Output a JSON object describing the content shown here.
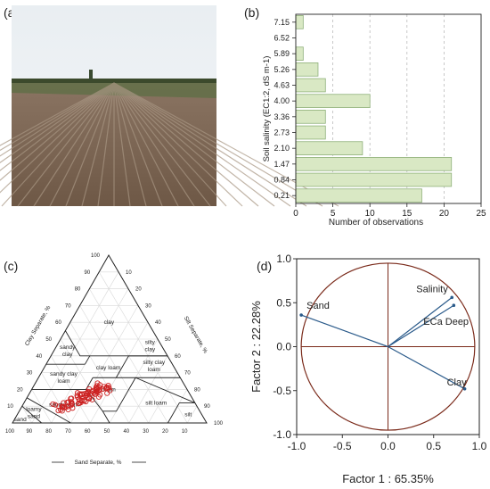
{
  "panels": {
    "a": "(a)",
    "b": "(b)",
    "c": "(c)",
    "d": "(d)"
  },
  "photo": {
    "subject": "field-rows-photo"
  },
  "chart_data": [
    {
      "type": "bar",
      "orientation": "horizontal",
      "categories": [
        "0.21",
        "0.84",
        "1.47",
        "2.10",
        "2.73",
        "3.36",
        "4.00",
        "4.63",
        "5.26",
        "5.89",
        "6.52",
        "7.15"
      ],
      "values": [
        17,
        21,
        21,
        9,
        4,
        4,
        10,
        4,
        3,
        1,
        0,
        1
      ],
      "xlabel": "Number of observations",
      "ylabel": "Soil salinity (EC1:2, dS m-1)",
      "xticks": [
        "0",
        "5",
        "10",
        "15",
        "20",
        "25"
      ],
      "xlim": [
        0,
        25
      ],
      "grid": "vertical dashed",
      "bar_color": "#d9e8c4",
      "bar_edge": "#8fb07a"
    },
    {
      "type": "ternary",
      "axes": {
        "left": "Clay Separate, %",
        "right": "Silt Separate, %",
        "bottom": "Sand Separate, %"
      },
      "tick_labels": [
        "10",
        "20",
        "30",
        "40",
        "50",
        "60",
        "70",
        "80",
        "90",
        "100"
      ],
      "classes": [
        "clay",
        "silty clay",
        "sandy clay",
        "clay loam",
        "silty clay loam",
        "sandy clay loam",
        "loam",
        "silt loam",
        "sandy loam",
        "loamy sand",
        "sand",
        "silt"
      ],
      "marker_color": "#cc2222"
    },
    {
      "type": "scatter",
      "title": "",
      "xlabel": "Factor 1 : 65.35%",
      "ylabel": "Factor 2 : 22.28%",
      "xlim": [
        -1.0,
        1.0
      ],
      "ylim": [
        -1.0,
        1.0
      ],
      "xticks": [
        "-1.0",
        "-0.5",
        "0.0",
        "0.5",
        "1.0"
      ],
      "yticks": [
        "1.0",
        "0.5",
        "0.0",
        "-0.5",
        "-1.0"
      ],
      "vectors": [
        {
          "name": "Sand",
          "x": -0.95,
          "y": 0.36
        },
        {
          "name": "Salinity",
          "x": 0.7,
          "y": 0.56
        },
        {
          "name": "ECa Deep",
          "x": 0.72,
          "y": 0.47
        },
        {
          "name": "Clay",
          "x": 0.84,
          "y": -0.48
        }
      ],
      "circle_color": "#7a2a1a",
      "vector_color": "#2a5a8a"
    }
  ]
}
